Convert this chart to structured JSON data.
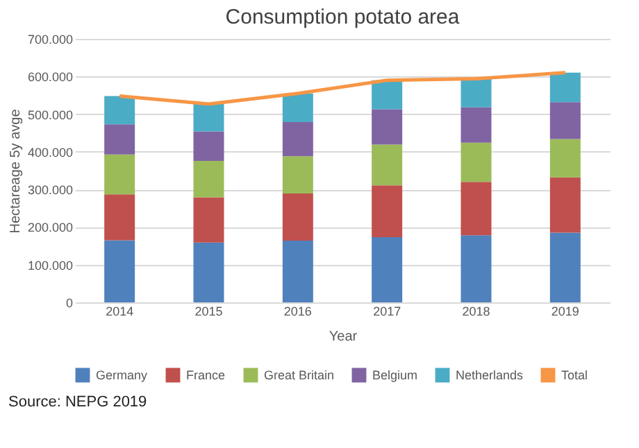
{
  "chart_data": {
    "type": "bar",
    "stacked": true,
    "title": "Consumption potato area",
    "xlabel": "Year",
    "ylabel": "Hectareage 5y avge",
    "categories": [
      "2014",
      "2015",
      "2016",
      "2017",
      "2018",
      "2019"
    ],
    "series": [
      {
        "name": "Germany",
        "color": "#4f81bd",
        "values": [
          165000,
          159000,
          164000,
          173000,
          178000,
          185000
        ]
      },
      {
        "name": "France",
        "color": "#c0504d",
        "values": [
          122000,
          120000,
          125000,
          138000,
          142000,
          147000
        ]
      },
      {
        "name": "Great Britain",
        "color": "#9bbb59",
        "values": [
          106000,
          97000,
          99000,
          108000,
          104000,
          102000
        ]
      },
      {
        "name": "Belgium",
        "color": "#8064a2",
        "values": [
          80000,
          78000,
          91000,
          94000,
          94000,
          98000
        ]
      },
      {
        "name": "Netherlands",
        "color": "#4bacc6",
        "values": [
          75000,
          73000,
          76000,
          77000,
          76000,
          78000
        ]
      },
      {
        "name": "Total",
        "type": "line",
        "color": "#f79646",
        "values": [
          548000,
          527000,
          555000,
          590000,
          594000,
          610000
        ]
      }
    ],
    "ylim": [
      0,
      700000
    ],
    "yticks": [
      0,
      {
        "value": 100000,
        "label": "100.000"
      },
      {
        "value": 200000,
        "label": "200.000"
      },
      {
        "value": 300000,
        "label": "300.000"
      },
      {
        "value": 400000,
        "label": "400.000"
      },
      {
        "value": 500000,
        "label": "500.000"
      },
      {
        "value": 600000,
        "label": "600.000"
      },
      {
        "value": 700000,
        "label": "700.000"
      }
    ],
    "grid": "y",
    "legend": "bottom",
    "annotations": [
      "Source: NEPG 2019"
    ]
  }
}
